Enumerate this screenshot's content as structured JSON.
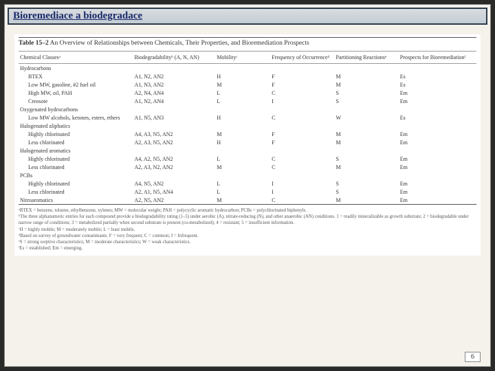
{
  "slide": {
    "title": "Bioremediace a biodegradace",
    "page_number": "6"
  },
  "table": {
    "caption_label": "Table 15–2",
    "caption_text": "An Overview of Relationships between Chemicals, Their Properties, and Bioremediation Prospects",
    "headers": [
      "Chemical Classesᵃ",
      "Biodegradabilityᵇ\n(A, N, AN)",
      "Mobilityᶜ",
      "Frequency of\nOccurrenceᵈ",
      "Partitioning\nReactionsᵉ",
      "Prospects for\nBioremediationᶠ"
    ],
    "rows": [
      {
        "type": "group",
        "cells": [
          "Hydrocarbons",
          "",
          "",
          "",
          "",
          ""
        ]
      },
      {
        "type": "indent",
        "cells": [
          "BTEX",
          "A1, N2, AN2",
          "H",
          "F",
          "M",
          "Es"
        ]
      },
      {
        "type": "indent",
        "cells": [
          "Low MW, gasoline, #2 fuel oil",
          "A1, N3, AN2",
          "M",
          "F",
          "M",
          "Es"
        ]
      },
      {
        "type": "indent",
        "cells": [
          "High MW, oil, PAH",
          "A2, N4, AN4",
          "L",
          "C",
          "S",
          "Em"
        ]
      },
      {
        "type": "indent",
        "cells": [
          "Creosote",
          "A1, N2, AN4",
          "L",
          "I",
          "S",
          "Em"
        ]
      },
      {
        "type": "group",
        "cells": [
          "Oxygenated hydrocarbons",
          "",
          "",
          "",
          "",
          ""
        ]
      },
      {
        "type": "indent",
        "cells": [
          "Low MW alcohols, ketones, esters, ethers",
          "A1, N5, AN3",
          "H",
          "C",
          "W",
          "Es"
        ]
      },
      {
        "type": "group",
        "cells": [
          "Halogenated aliphatics",
          "",
          "",
          "",
          "",
          ""
        ]
      },
      {
        "type": "indent",
        "cells": [
          "Highly chlorinated",
          "A4, A3, N5, AN2",
          "M",
          "F",
          "M",
          "Em"
        ]
      },
      {
        "type": "indent",
        "cells": [
          "Less chlorinated",
          "A2, A3, N5, AN2",
          "H",
          "F",
          "M",
          "Em"
        ]
      },
      {
        "type": "group",
        "cells": [
          "Halogenated aromatics",
          "",
          "",
          "",
          "",
          ""
        ]
      },
      {
        "type": "indent",
        "cells": [
          "Highly chlorinated",
          "A4, A2, N5, AN2",
          "L",
          "C",
          "S",
          "Em"
        ]
      },
      {
        "type": "indent",
        "cells": [
          "Less chlorinated",
          "A2, A3, N2, AN2",
          "M",
          "C",
          "M",
          "Em"
        ]
      },
      {
        "type": "group",
        "cells": [
          "PCBs",
          "",
          "",
          "",
          "",
          ""
        ]
      },
      {
        "type": "indent",
        "cells": [
          "Highly chlorinated",
          "A4, N5, AN2",
          "L",
          "I",
          "S",
          "Em"
        ]
      },
      {
        "type": "indent",
        "cells": [
          "Less chlorinated",
          "A2, A1, N5, AN4",
          "L",
          "I",
          "S",
          "Em"
        ]
      },
      {
        "type": "group",
        "cells": [
          "Nitroaromatics",
          "A2, N5, AN2",
          "M",
          "C",
          "M",
          "Em"
        ]
      }
    ]
  },
  "footnotes": [
    "ᵃBTEX = benzene, toluene, ethylbenzene, xylenes; MW = molecular weight; PAH = polycyclic aromatic hydrocarbon; PCBs = polychlorinated biphenyls.",
    "ᵇThe three alphanumeric entries for each compound provide a biodegradability rating (1–5) under aerobic (A), nitrate-reducing (N), and other anaerobic (AN) conditions. 1 = readily mineralizable as growth substrate; 2 = biodegradable under narrow range of conditions; 3 = metabolized partially when second substrate is present (co-metabolized); 4 = resistant; 5 = insufficient information.",
    "ᶜH = highly mobile; M = moderately mobile; L = least mobile.",
    "ᵈBased on survey of groundwater contaminants. F = very frequent; C = common; I = Infrequent.",
    "ᵉS = strong sorptive characteristics; M = moderate characteristics; W = weak characteristics.",
    "ᶠEs = established; Em = emerging."
  ]
}
